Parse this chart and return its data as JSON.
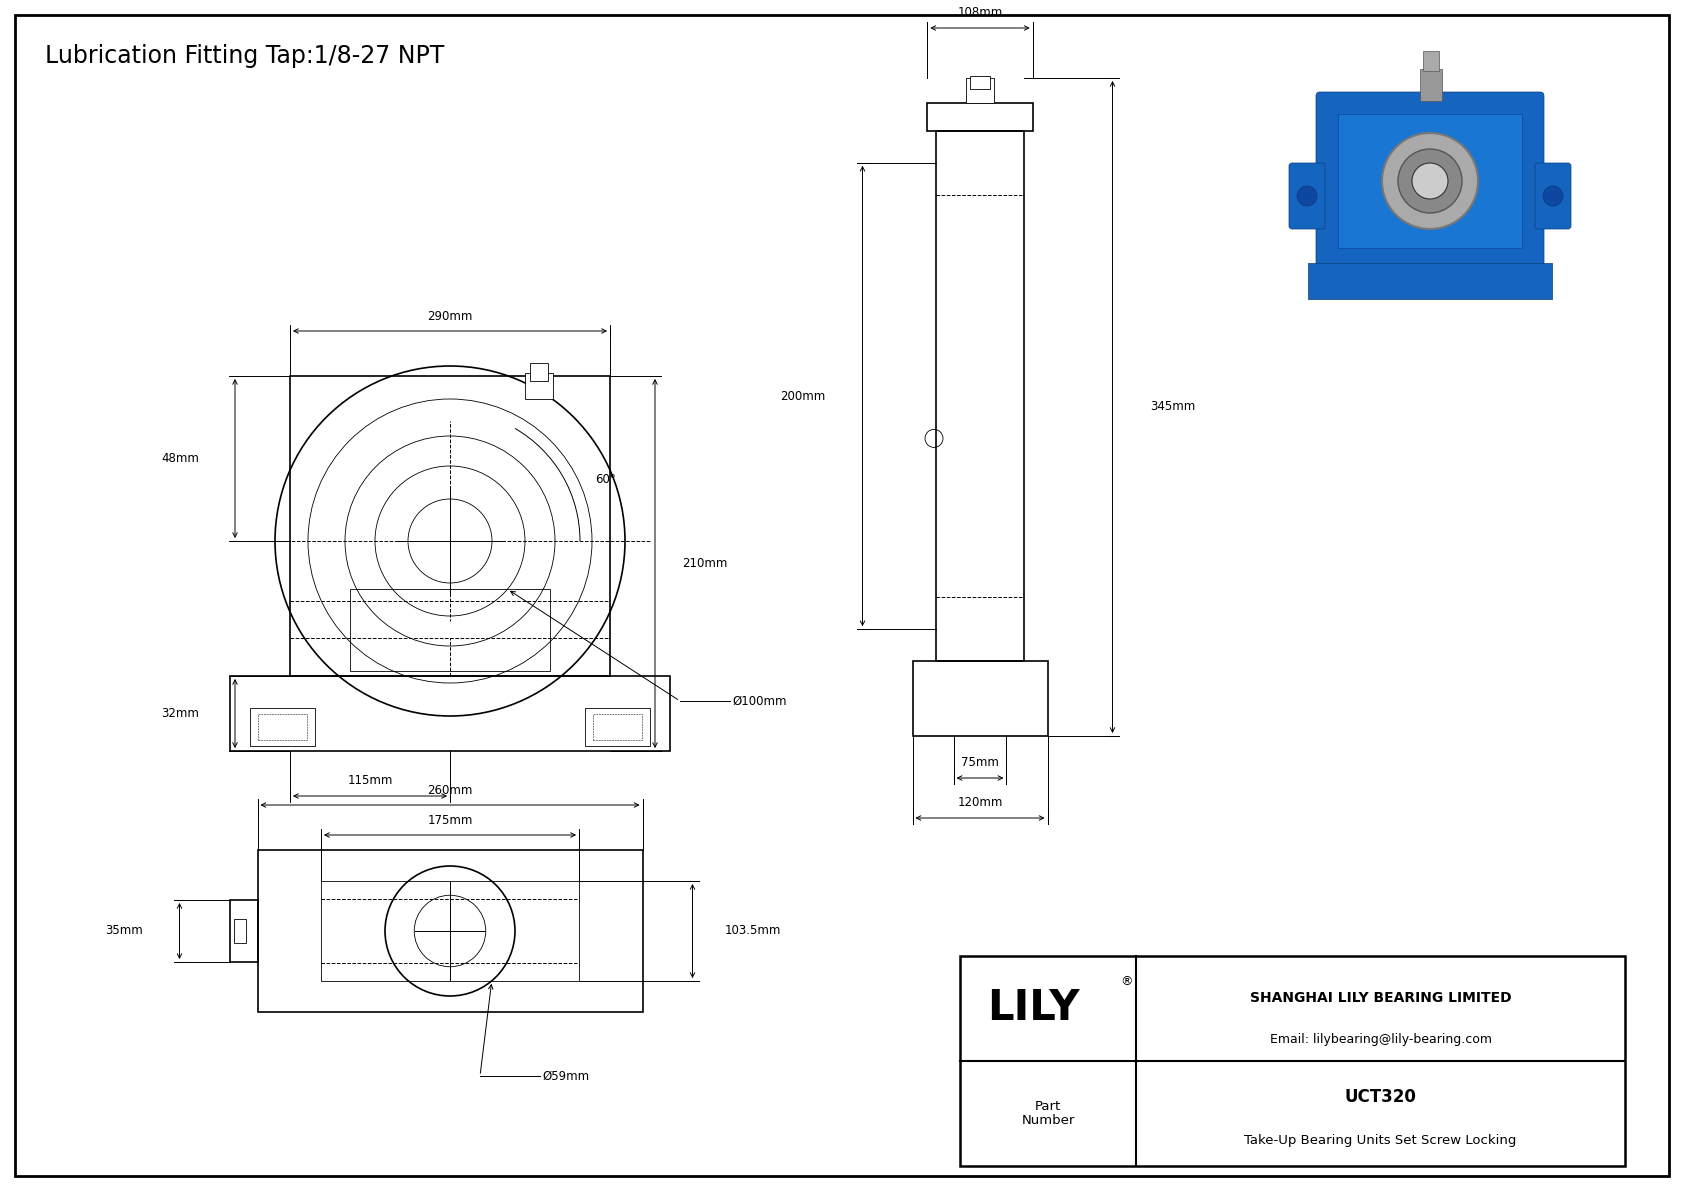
{
  "title": "Lubrication Fitting Tap:1/8-27 NPT",
  "background_color": "#ffffff",
  "line_color": "#000000",
  "company_name": "SHANGHAI LILY BEARING LIMITED",
  "company_email": "Email: lilybearing@lily-bearing.com",
  "part_number": "UCT320",
  "part_description": "Take-Up Bearing Units Set Screw Locking",
  "dims": {
    "front_width": "290mm",
    "front_height_upper": "48mm",
    "front_height_lower": "32mm",
    "front_half_width": "115mm",
    "front_bore": "Ø100mm",
    "front_right": "210mm",
    "front_angle": "60°",
    "side_top": "108mm",
    "side_mid": "200mm",
    "side_right": "345mm",
    "side_bot1": "75mm",
    "side_bot2": "120mm",
    "bot_width": "260mm",
    "bot_inner_width": "175mm",
    "bot_height": "103.5mm",
    "bot_bore": "Ø59mm",
    "bot_side": "35mm"
  }
}
